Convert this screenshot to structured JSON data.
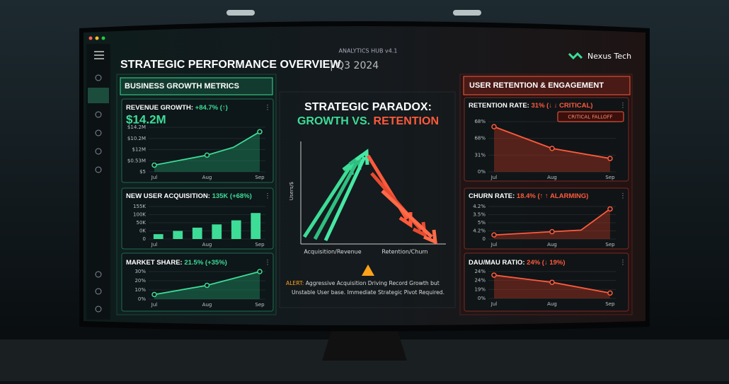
{
  "header": {
    "app_title": "ANALYTICS HUB v4.1",
    "title": "STRATEGIC PERFORMANCE OVERVIEW",
    "period": "| Q3 2024",
    "brand": "Nexus Tech"
  },
  "left_panel": {
    "title": "BUSINESS GROWTH METRICS",
    "cards": [
      {
        "label": "REVENUE GROWTH:",
        "change": "+84.7% (↑)",
        "big_value": "$14.2M",
        "chart": {
          "type": "line",
          "yticks": [
            {
              "value": 4,
              "label": "$14.2M"
            },
            {
              "value": 3,
              "label": "$10.2M"
            },
            {
              "value": 2,
              "label": "$12M"
            },
            {
              "value": 1,
              "label": "$0.53M"
            },
            {
              "value": 0,
              "label": "$5"
            }
          ],
          "ylim": [
            0,
            4
          ],
          "x_labels": [
            "Jul",
            "Aug",
            "Sep"
          ],
          "x": [
            0,
            1,
            1.5,
            2
          ],
          "values": [
            0.6,
            1.5,
            2.2,
            3.6
          ]
        }
      },
      {
        "label": "NEW USER ACQUISITION:",
        "change": "135K (+68%)",
        "chart": {
          "type": "bar",
          "yticks": [
            {
              "value": 4,
              "label": "155K"
            },
            {
              "value": 3,
              "label": "100K"
            },
            {
              "value": 2,
              "label": "50K"
            },
            {
              "value": 1,
              "label": "0K"
            },
            {
              "value": 0,
              "label": "0"
            }
          ],
          "ylim": [
            0,
            4
          ],
          "x_labels": [
            "Jul",
            "Aug",
            "Sep"
          ],
          "values": [
            0.6,
            1.0,
            1.4,
            1.8,
            2.3,
            3.2
          ]
        }
      },
      {
        "label": "MARKET SHARE:",
        "change": "21.5% (+35%)",
        "chart": {
          "type": "line",
          "yticks": [
            {
              "value": 30,
              "label": "30%"
            },
            {
              "value": 20,
              "label": "20%"
            },
            {
              "value": 10,
              "label": "10%"
            },
            {
              "value": 0,
              "label": "0%"
            }
          ],
          "ylim": [
            0,
            30
          ],
          "x_labels": [
            "Jul",
            "Aug",
            "Sep"
          ],
          "x": [
            0,
            1,
            2
          ],
          "values": [
            5,
            15,
            30
          ]
        }
      }
    ]
  },
  "center": {
    "title_line1": "STRATEGIC PARADOX:",
    "title_line2_a": "GROWTH VS.",
    "title_line2_b": "RETENTION",
    "y_axis": "Users/$",
    "x_left": "Acquisition/Revenue",
    "x_right": "Retention/Churn",
    "alert_label": "ALERT:",
    "alert_line1": "Aggressive Acquisition Driving Record Growth but",
    "alert_line2": "Unstable User base. Immediate Strategic Pivot Required."
  },
  "right_panel": {
    "title": "USER RETENTION & ENGAGEMENT",
    "cards": [
      {
        "label": "RETENTION RATE:",
        "change": "31% (↓ ↓ CRITICAL)",
        "badge": "CRITICAL FALLOFF",
        "chart": {
          "type": "line",
          "yticks": [
            {
              "value": 3,
              "label": "68%"
            },
            {
              "value": 2,
              "label": "68%"
            },
            {
              "value": 1,
              "label": "31%"
            },
            {
              "value": 0,
              "label": "0%"
            }
          ],
          "ylim": [
            0,
            3
          ],
          "x_labels": [
            "Jul",
            "Aug",
            "Sep"
          ],
          "x": [
            0,
            1,
            2
          ],
          "values": [
            2.7,
            1.4,
            0.8
          ]
        }
      },
      {
        "label": "CHURN RATE:",
        "change": "18.4% (↑ ↑ ALARMING)",
        "chart": {
          "type": "line",
          "yticks": [
            {
              "value": 4,
              "label": "4.2%"
            },
            {
              "value": 3,
              "label": "3.5%"
            },
            {
              "value": 2,
              "label": "5%"
            },
            {
              "value": 1,
              "label": "4.2%"
            },
            {
              "value": 0,
              "label": "0"
            }
          ],
          "ylim": [
            0,
            4
          ],
          "x_labels": [
            "Jul",
            "Aug",
            "Sep"
          ],
          "x": [
            0,
            1,
            1.5,
            2
          ],
          "values": [
            0.5,
            0.9,
            1.1,
            3.7
          ]
        }
      },
      {
        "label": "DAU/MAU RATIO:",
        "change": "24% (↓ 19%)",
        "chart": {
          "type": "line",
          "yticks": [
            {
              "value": 3,
              "label": "24%"
            },
            {
              "value": 2,
              "label": "24%"
            },
            {
              "value": 1,
              "label": "19%"
            },
            {
              "value": 0,
              "label": "0%"
            }
          ],
          "ylim": [
            0,
            3
          ],
          "x_labels": [
            "Jul",
            "Aug",
            "Sep"
          ],
          "x": [
            0,
            1,
            2
          ],
          "values": [
            2.6,
            1.8,
            0.6
          ]
        }
      }
    ]
  }
}
